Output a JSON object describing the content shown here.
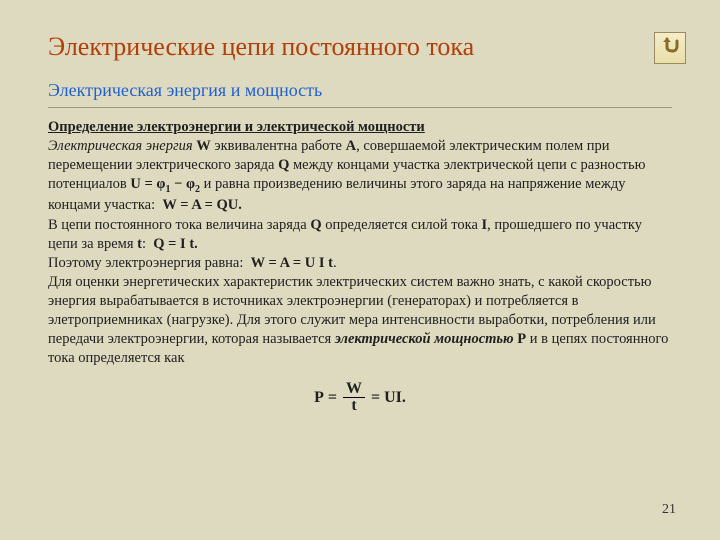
{
  "title": "Электрические цепи постоянного тока",
  "subtitle": "Электрическая энергия и мощность",
  "heading": "Определение электроэнергии и электрической мощности",
  "body_html": "<em>Электрическая энергия</em> <strong>W</strong> эквивалентна работе <strong>A</strong>, совершаемой электрическим полем при перемещении электрического заряда <strong>Q</strong> между концами участка электрической цепи с разностью потенциалов <strong>U = &phi;<span class=\"sub\">1</span> &minus; &phi;<span class=\"sub\">2</span></strong> и равна произведению величины этого заряда на напряжение между концами участка:&nbsp; <strong>W = A = QU.</strong><br>В цепи постоянного тока величина заряда <strong>Q</strong> определяется силой тока <strong>I</strong>, прошедшего по участку цепи за время <strong>t</strong>:&nbsp; <strong>Q = I t.</strong><br>Поэтому электроэнергия равна:&nbsp; <strong>W = A = U I t</strong>.<br>Для оценки энергетических характеристик электрических систем важно знать, с какой скоростью энергия вырабатывается в источниках электроэнергии (генераторах) и потребляется в элетроприемниках (нагрузке). Для этого служит мера интенсивности выработки, потребления или передачи электроэнергии, которая называется <em><strong>электрической мощностью</strong></em> <strong>P</strong> и в цепях постоянного тока определяется как",
  "formula": {
    "lhs": "P",
    "num": "W",
    "den": "t",
    "rhs": "UI."
  },
  "page_number": "21",
  "colors": {
    "background": "#dedac0",
    "title": "#b23f0a",
    "subtitle": "#2060d0",
    "text": "#202020",
    "divider": "#9a9680"
  },
  "fontsize": {
    "title": 26,
    "subtitle": 18,
    "body": 14.5,
    "formula": 16,
    "page": 14
  }
}
